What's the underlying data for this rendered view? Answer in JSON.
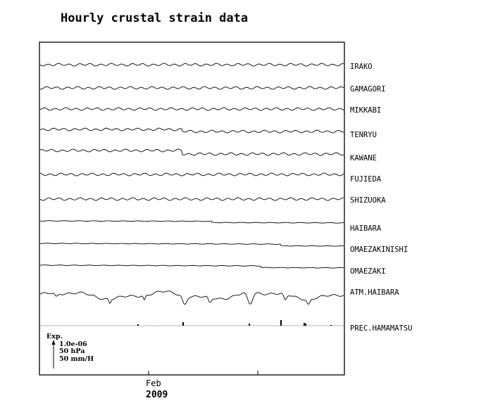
{
  "chart_data": {
    "type": "line",
    "title": "Hourly crustal strain data",
    "xlabel": "",
    "ylabel": "",
    "x_ticks": [
      "Feb"
    ],
    "year_label": "2009",
    "grid": false,
    "legend": {
      "title": "Exp.",
      "scales": [
        "1.0e-06",
        "50 hPa",
        "50 mm/H"
      ]
    },
    "series": [
      {
        "name": "IRAKO",
        "pattern": "wavy",
        "level_shift": 0
      },
      {
        "name": "GAMAGORI",
        "pattern": "wavy",
        "level_shift": 0
      },
      {
        "name": "MIKKABI",
        "pattern": "wavy",
        "level_shift": 0
      },
      {
        "name": "TENRYU",
        "pattern": "wavy",
        "level_shift": 3
      },
      {
        "name": "KAWANE",
        "pattern": "wavy",
        "level_shift": 5
      },
      {
        "name": "FUJIEDA",
        "pattern": "wavy",
        "level_shift": 0
      },
      {
        "name": "SHIZUOKA",
        "pattern": "wavy",
        "level_shift": 0
      },
      {
        "name": "HAIBARA",
        "pattern": "smooth",
        "level_shift": 3
      },
      {
        "name": "OMAEZAKINISHI",
        "pattern": "smooth",
        "level_shift": 4
      },
      {
        "name": "OMAEZAKI",
        "pattern": "smooth",
        "level_shift": 4
      },
      {
        "name": "ATM.HAIBARA",
        "pattern": "pressure",
        "level_shift": 0
      },
      {
        "name": "PREC.HAMAMATSU",
        "pattern": "precip",
        "level_shift": 0
      }
    ]
  }
}
